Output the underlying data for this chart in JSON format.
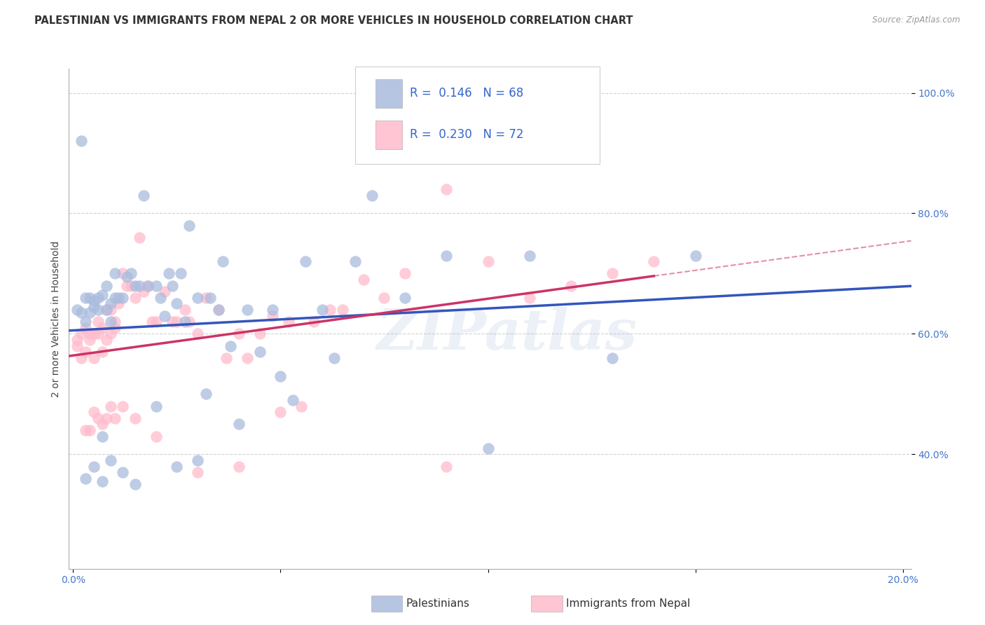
{
  "title": "PALESTINIAN VS IMMIGRANTS FROM NEPAL 2 OR MORE VEHICLES IN HOUSEHOLD CORRELATION CHART",
  "source": "Source: ZipAtlas.com",
  "ylabel": "2 or more Vehicles in Household",
  "xlim": [
    -0.001,
    0.202
  ],
  "ylim": [
    0.21,
    1.04
  ],
  "blue_color": "#aabbdd",
  "pink_color": "#ffbbcc",
  "blue_line_color": "#3355bb",
  "pink_line_color": "#cc3366",
  "background_color": "#ffffff",
  "watermark": "ZIPatlas",
  "legend_blue_R": "0.146",
  "legend_blue_N": "68",
  "legend_pink_R": "0.230",
  "legend_pink_N": "72",
  "legend_label_blue": "Palestinians",
  "legend_label_pink": "Immigrants from Nepal",
  "title_fontsize": 10.5,
  "axis_label_fontsize": 10,
  "tick_fontsize": 10,
  "blue_x": [
    0.001,
    0.002,
    0.003,
    0.003,
    0.004,
    0.004,
    0.005,
    0.005,
    0.006,
    0.006,
    0.007,
    0.007,
    0.008,
    0.008,
    0.009,
    0.009,
    0.01,
    0.01,
    0.011,
    0.012,
    0.013,
    0.014,
    0.015,
    0.016,
    0.017,
    0.018,
    0.02,
    0.021,
    0.022,
    0.023,
    0.024,
    0.025,
    0.026,
    0.027,
    0.028,
    0.03,
    0.032,
    0.033,
    0.035,
    0.036,
    0.038,
    0.04,
    0.042,
    0.045,
    0.048,
    0.05,
    0.053,
    0.056,
    0.06,
    0.063,
    0.068,
    0.072,
    0.08,
    0.09,
    0.1,
    0.11,
    0.13,
    0.15,
    0.003,
    0.005,
    0.007,
    0.009,
    0.012,
    0.015,
    0.02,
    0.025,
    0.03,
    0.002
  ],
  "blue_y": [
    0.64,
    0.635,
    0.62,
    0.66,
    0.635,
    0.66,
    0.645,
    0.655,
    0.64,
    0.66,
    0.43,
    0.665,
    0.64,
    0.68,
    0.65,
    0.62,
    0.66,
    0.7,
    0.66,
    0.66,
    0.695,
    0.7,
    0.68,
    0.68,
    0.83,
    0.68,
    0.68,
    0.66,
    0.63,
    0.7,
    0.68,
    0.65,
    0.7,
    0.62,
    0.78,
    0.66,
    0.5,
    0.66,
    0.64,
    0.72,
    0.58,
    0.45,
    0.64,
    0.57,
    0.64,
    0.53,
    0.49,
    0.72,
    0.64,
    0.56,
    0.72,
    0.83,
    0.66,
    0.73,
    0.41,
    0.73,
    0.56,
    0.73,
    0.36,
    0.38,
    0.355,
    0.39,
    0.37,
    0.35,
    0.48,
    0.38,
    0.39,
    0.92
  ],
  "pink_x": [
    0.001,
    0.001,
    0.002,
    0.002,
    0.003,
    0.003,
    0.004,
    0.004,
    0.005,
    0.005,
    0.006,
    0.006,
    0.007,
    0.007,
    0.008,
    0.008,
    0.009,
    0.009,
    0.01,
    0.01,
    0.011,
    0.012,
    0.013,
    0.014,
    0.015,
    0.016,
    0.017,
    0.018,
    0.019,
    0.02,
    0.022,
    0.024,
    0.025,
    0.027,
    0.028,
    0.03,
    0.032,
    0.035,
    0.037,
    0.04,
    0.042,
    0.045,
    0.048,
    0.05,
    0.052,
    0.055,
    0.058,
    0.062,
    0.065,
    0.07,
    0.075,
    0.08,
    0.09,
    0.1,
    0.11,
    0.12,
    0.13,
    0.14,
    0.003,
    0.004,
    0.005,
    0.006,
    0.007,
    0.008,
    0.009,
    0.01,
    0.012,
    0.015,
    0.02,
    0.04,
    0.09,
    0.03
  ],
  "pink_y": [
    0.59,
    0.58,
    0.6,
    0.56,
    0.61,
    0.57,
    0.59,
    0.6,
    0.56,
    0.6,
    0.6,
    0.62,
    0.57,
    0.61,
    0.59,
    0.64,
    0.6,
    0.64,
    0.61,
    0.62,
    0.65,
    0.7,
    0.68,
    0.68,
    0.66,
    0.76,
    0.67,
    0.68,
    0.62,
    0.62,
    0.67,
    0.62,
    0.62,
    0.64,
    0.62,
    0.6,
    0.66,
    0.64,
    0.56,
    0.6,
    0.56,
    0.6,
    0.63,
    0.47,
    0.62,
    0.48,
    0.62,
    0.64,
    0.64,
    0.69,
    0.66,
    0.7,
    0.84,
    0.72,
    0.66,
    0.68,
    0.7,
    0.72,
    0.44,
    0.44,
    0.47,
    0.46,
    0.45,
    0.46,
    0.48,
    0.46,
    0.48,
    0.46,
    0.43,
    0.38,
    0.38,
    0.37
  ]
}
